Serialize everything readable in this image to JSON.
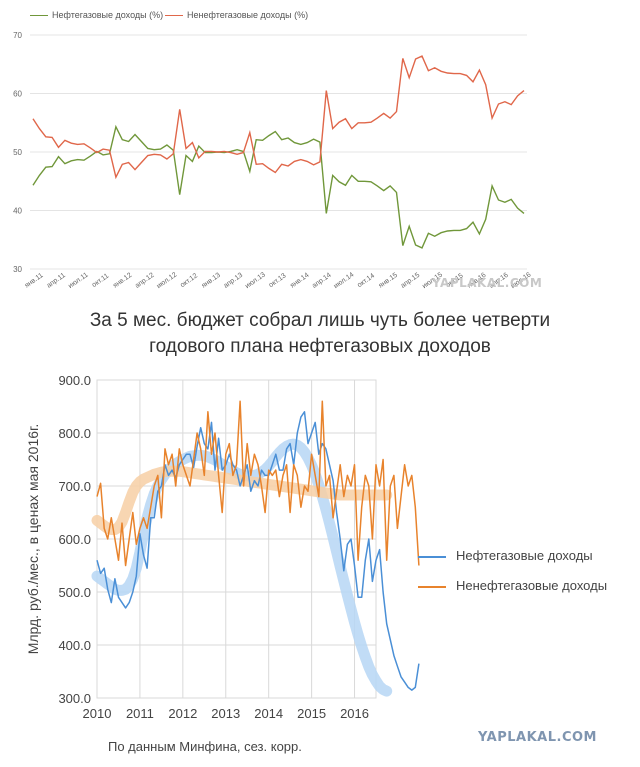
{
  "chart_data": [
    {
      "type": "line",
      "title": "",
      "legend_position": "top-left",
      "ylim": [
        30,
        70
      ],
      "yticks": [
        "70",
        "60",
        "50",
        "40",
        "30"
      ],
      "grid": true,
      "x_tick_labels": [
        "янв.11",
        "апр.11",
        "июл.11",
        "окт.11",
        "янв.12",
        "апр.12",
        "июл.12",
        "окт.12",
        "янв.13",
        "апр.13",
        "июл.13",
        "окт.13",
        "янв.14",
        "апр.14",
        "июл.14",
        "окт.14",
        "янв.15",
        "апр.15",
        "июл.15",
        "окт.15",
        "янв.16",
        "апр.16",
        "июл.16"
      ],
      "series": [
        {
          "name": "Нефтегазовые доходы (%)",
          "color": "#70973a",
          "values": [
            44.3,
            46,
            47.4,
            47.5,
            49.2,
            48,
            48.5,
            48.7,
            48.6,
            49.3,
            50.1,
            49.5,
            49.7,
            54.3,
            52.1,
            51.8,
            53,
            51.8,
            50.6,
            50.4,
            50.5,
            51.2,
            50.3,
            42.7,
            49.4,
            48.4,
            51,
            49.9,
            49.9,
            50,
            49.9,
            50.1,
            50.4,
            50.1,
            46.7,
            52.1,
            52,
            52.8,
            53.5,
            52.1,
            52.4,
            51.6,
            51.3,
            51.6,
            52.2,
            51.7,
            39.5,
            46,
            44.9,
            44.3,
            46,
            45,
            45,
            44.9,
            44.2,
            43.4,
            44.2,
            43.1,
            34,
            37.3,
            34.1,
            33.6,
            36.1,
            35.6,
            36.2,
            36.5,
            36.6,
            36.6,
            36.9,
            38,
            36,
            38.5,
            44.2,
            41.8,
            41.4,
            41.9,
            40.4,
            39.5
          ]
        },
        {
          "name": "Ненефтегазовые доходы (%)",
          "color": "#e0674a",
          "values": [
            55.7,
            54,
            52.6,
            52.5,
            50.8,
            52,
            51.5,
            51.3,
            51.4,
            50.7,
            49.9,
            50.5,
            50.3,
            45.7,
            47.9,
            48.2,
            47,
            48.2,
            49.4,
            49.6,
            49.5,
            48.8,
            49.7,
            57.3,
            50.6,
            51.6,
            49,
            50.1,
            50.1,
            50,
            50.1,
            49.9,
            49.6,
            49.9,
            53.3,
            47.9,
            48,
            47.2,
            46.5,
            47.9,
            47.6,
            48.4,
            48.7,
            48.4,
            47.8,
            48.3,
            60.5,
            54,
            55.1,
            55.7,
            54,
            55,
            55,
            55.1,
            55.8,
            56.6,
            55.8,
            56.9,
            66,
            62.7,
            65.9,
            66.4,
            63.9,
            64.4,
            63.8,
            63.5,
            63.4,
            63.4,
            63.1,
            62,
            64,
            61.5,
            55.8,
            58.2,
            58.6,
            58.1,
            59.6,
            60.5
          ]
        }
      ],
      "watermark": "YAPLAKAL.COM"
    },
    {
      "type": "line",
      "title": "За 5 мес. бюджет собрал лишь чуть более четверти годового плана нефтегазовых доходов",
      "title_lines": [
        "За 5 мес. бюджет собрал лишь чуть более четверти",
        "годового плана нефтегазовых доходов"
      ],
      "ylabel": "Млрд. руб./мес., в ценах мая 2016г.",
      "xlabel": "По данным Минфина, сез. корр.",
      "xlim": [
        2010,
        2016.5
      ],
      "ylim": [
        300,
        900
      ],
      "yticks": [
        "900.0",
        "800.0",
        "700.0",
        "600.0",
        "500.0",
        "400.0",
        "300.0"
      ],
      "xticks": [
        "2010",
        "2011",
        "2012",
        "2013",
        "2014",
        "2015",
        "2016"
      ],
      "legend_position": "right",
      "grid": true,
      "series": [
        {
          "name": "Нефтегазовые доходы",
          "color": "#4a8fd6",
          "band_color": "#b6d6f5",
          "x_start": 2010,
          "x_step": 0.08333,
          "values": [
            560,
            535,
            545,
            505,
            480,
            525,
            490,
            480,
            470,
            480,
            500,
            530,
            610,
            570,
            545,
            640,
            640,
            690,
            700,
            740,
            720,
            730,
            715,
            740,
            750,
            760,
            760,
            735,
            775,
            810,
            780,
            770,
            820,
            730,
            790,
            730,
            740,
            760,
            740,
            730,
            700,
            720,
            740,
            690,
            710,
            700,
            730,
            720,
            720,
            740,
            760,
            730,
            730,
            770,
            780,
            740,
            800,
            830,
            840,
            780,
            800,
            820,
            760,
            780,
            770,
            740,
            710,
            650,
            600,
            540,
            590,
            600,
            550,
            490,
            490,
            560,
            600,
            520,
            560,
            580,
            500,
            440,
            410,
            380,
            360,
            340,
            330,
            320,
            315,
            320,
            365
          ],
          "trend": [
            530,
            525,
            520,
            515,
            510,
            505,
            503,
            503,
            505,
            512,
            525,
            545,
            575,
            610,
            640,
            665,
            685,
            700,
            712,
            722,
            730,
            737,
            742,
            746,
            750,
            753,
            756,
            757,
            758,
            758,
            757,
            755,
            752,
            749,
            745,
            741,
            737,
            733,
            729,
            725,
            722,
            720,
            719,
            719,
            720,
            722,
            726,
            731,
            738,
            746,
            755,
            763,
            770,
            775,
            778,
            779,
            777,
            772,
            764,
            753,
            739,
            722,
            702,
            680,
            656,
            630,
            603,
            576,
            548,
            521,
            494,
            468,
            443,
            419,
            397,
            377,
            359,
            344,
            332,
            322,
            316,
            313
          ]
        },
        {
          "name": "Ненефтегазовые доходы",
          "color": "#e8832c",
          "band_color": "#f7cfa5",
          "x_start": 2010,
          "x_step": 0.08333,
          "values": [
            680,
            705,
            620,
            600,
            640,
            600,
            560,
            630,
            550,
            600,
            650,
            590,
            620,
            640,
            620,
            660,
            700,
            720,
            640,
            770,
            740,
            760,
            700,
            770,
            740,
            720,
            700,
            750,
            800,
            770,
            720,
            840,
            760,
            800,
            720,
            650,
            760,
            780,
            720,
            740,
            860,
            700,
            780,
            720,
            760,
            740,
            700,
            650,
            730,
            720,
            730,
            680,
            720,
            740,
            650,
            740,
            720,
            660,
            700,
            690,
            760,
            720,
            680,
            860,
            700,
            720,
            640,
            690,
            740,
            680,
            720,
            700,
            740,
            560,
            660,
            720,
            700,
            600,
            740,
            700,
            750,
            560,
            700,
            720,
            620,
            680,
            740,
            700,
            720,
            660,
            550
          ],
          "trend": [
            635,
            630,
            625,
            620,
            618,
            618,
            622,
            632,
            650,
            670,
            688,
            700,
            708,
            713,
            716,
            719,
            722,
            724,
            726,
            727,
            728,
            728,
            728,
            728,
            727,
            726,
            725,
            724,
            723,
            722,
            721,
            720,
            719,
            718,
            717,
            716,
            715,
            714,
            713,
            712,
            711,
            710,
            709,
            708,
            707,
            706,
            705,
            704,
            703,
            702,
            701,
            700,
            699,
            698,
            697,
            696,
            695,
            694,
            693,
            692,
            691,
            690,
            689,
            688,
            687,
            686,
            685,
            684,
            683,
            683,
            683,
            683,
            683,
            683,
            683,
            683,
            683,
            683,
            683,
            683,
            683,
            683
          ]
        }
      ],
      "watermark": "YAPLAKAL.COM"
    }
  ]
}
